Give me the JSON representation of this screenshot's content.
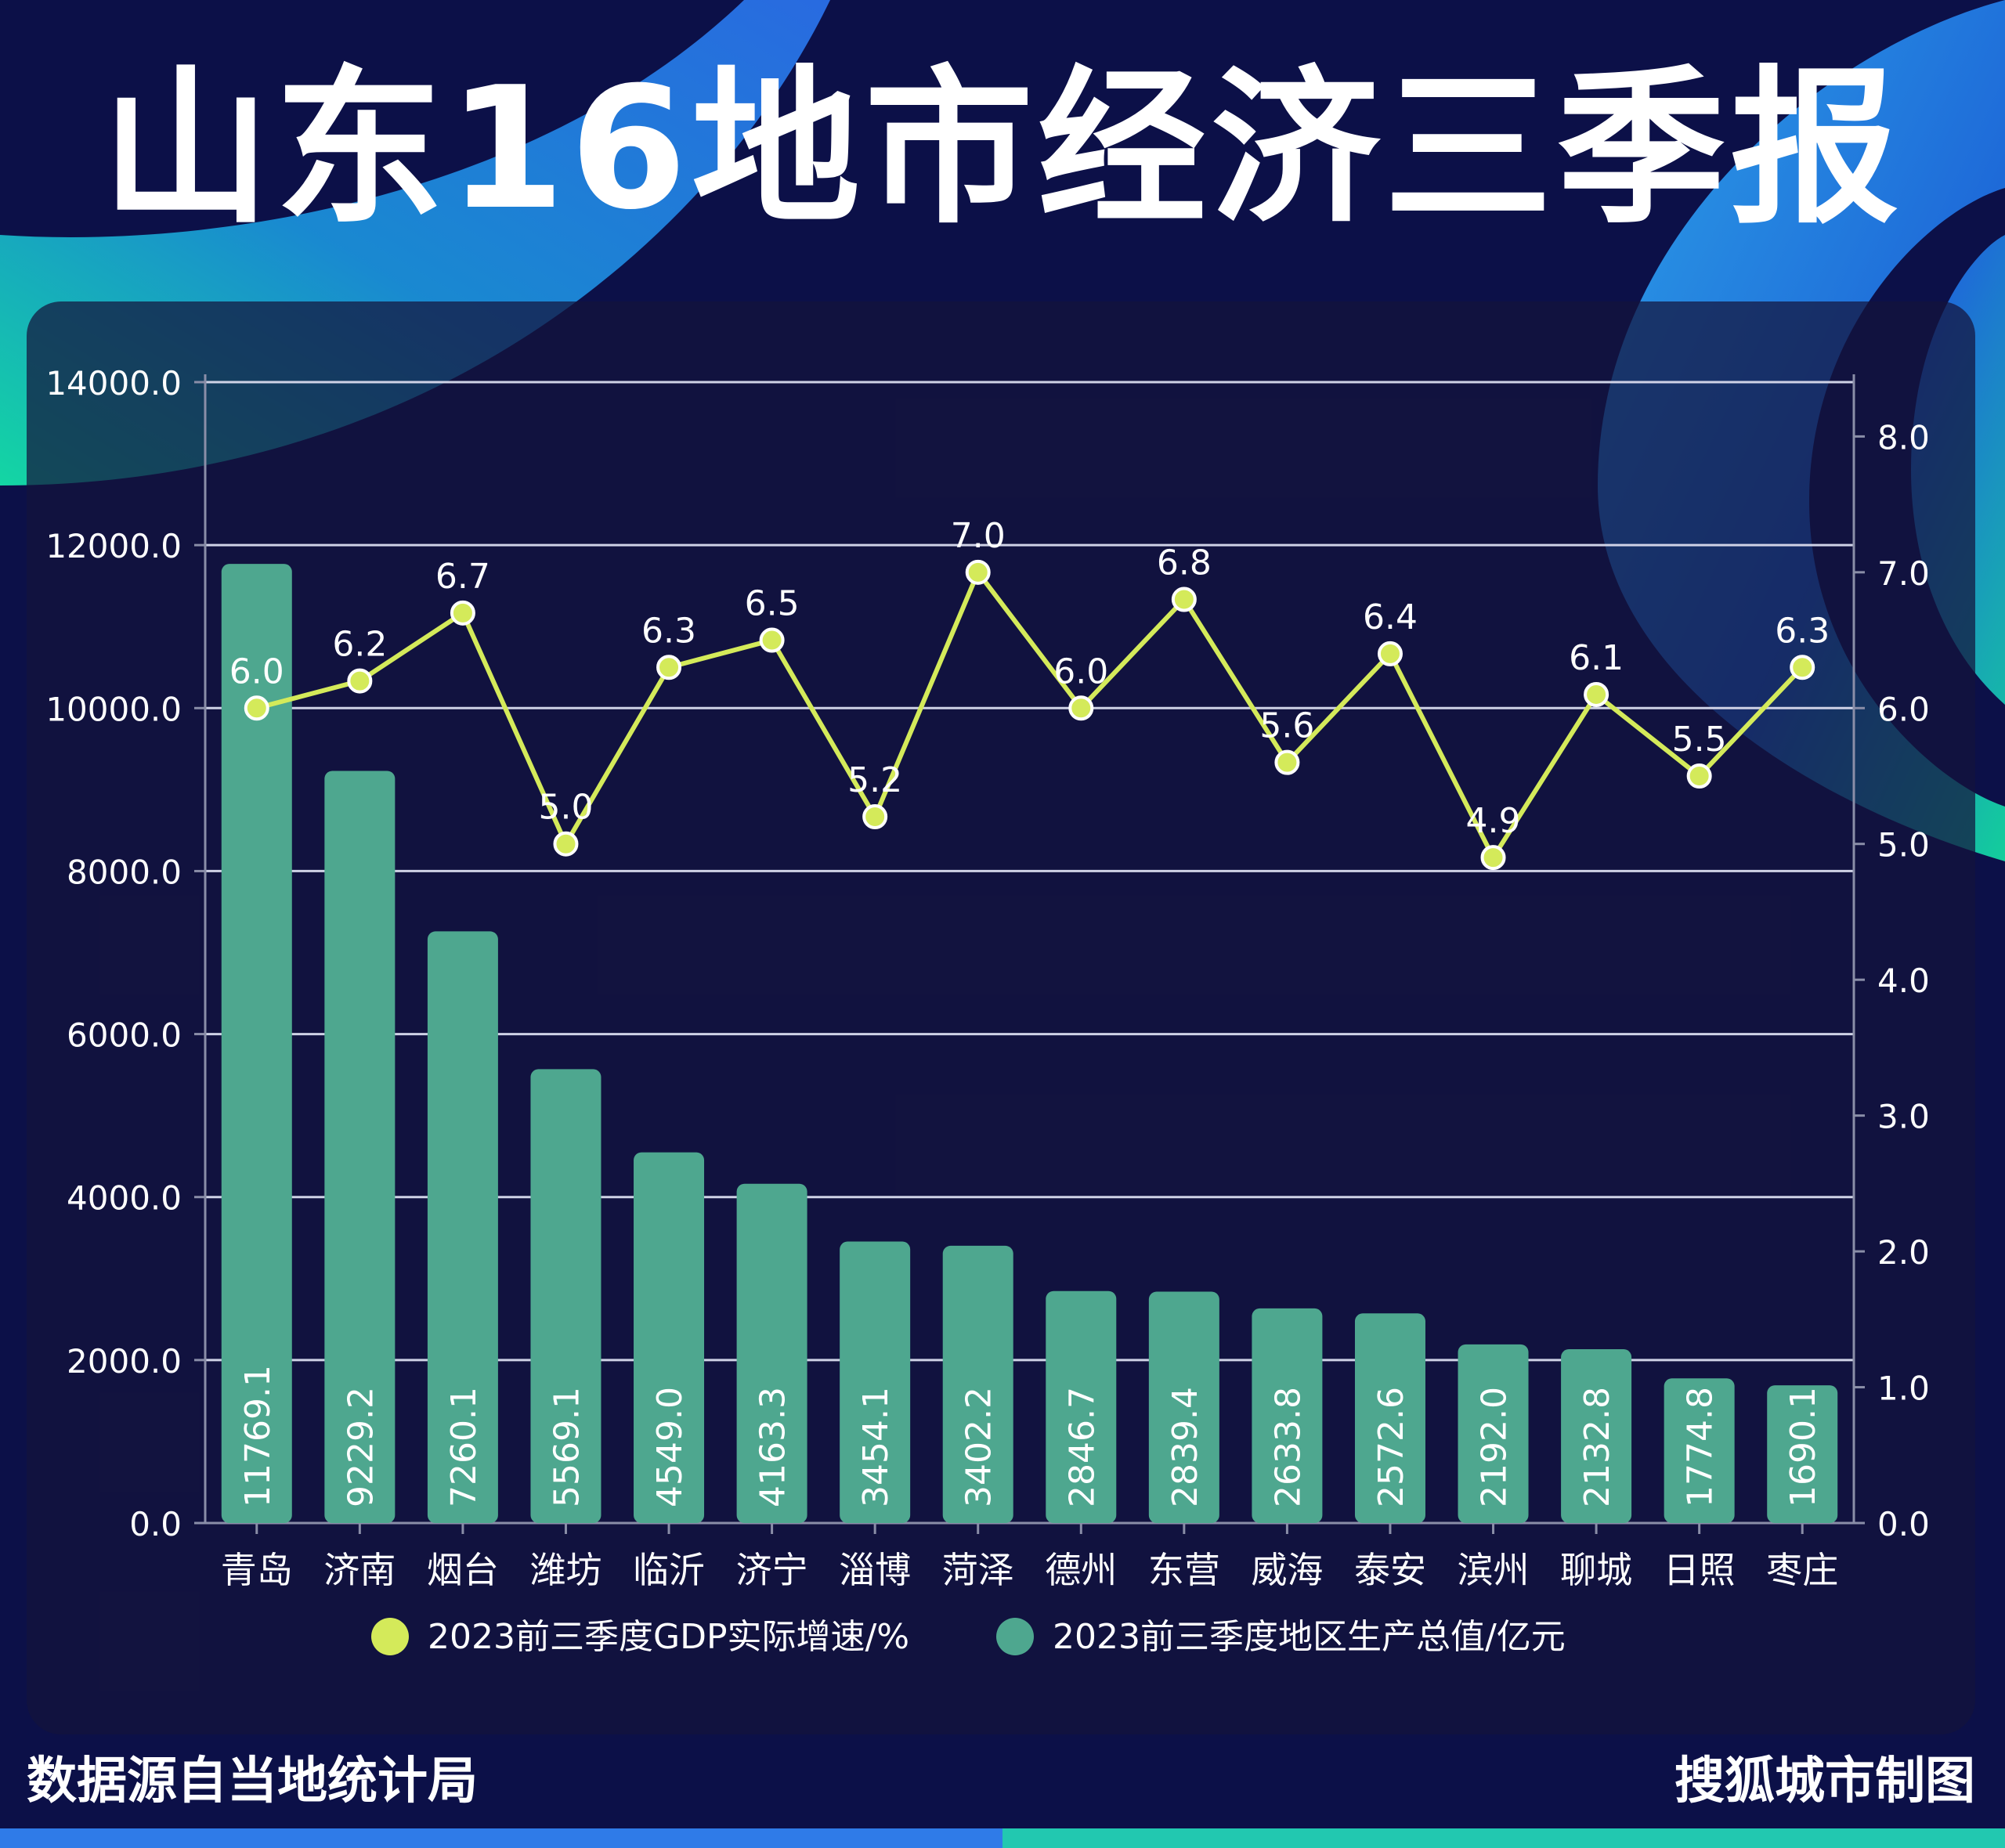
{
  "title": "山东16地市经济三季报",
  "footer": {
    "source": "数据源自当地统计局",
    "credit": "搜狐城市制图"
  },
  "colors": {
    "background": "#0c1048",
    "bar": "#4ea78f",
    "line": "#d4ea5a",
    "accent_blue": "#2f7be8",
    "accent_teal": "#22d4a8"
  },
  "chart_data": {
    "type": "bar",
    "categories": [
      "青岛",
      "济南",
      "烟台",
      "潍坊",
      "临沂",
      "济宁",
      "淄博",
      "菏泽",
      "德州",
      "东营",
      "威海",
      "泰安",
      "滨州",
      "聊城",
      "日照",
      "枣庄"
    ],
    "series": [
      {
        "name": "2023前三季度地区生产总值/亿元",
        "type": "bar",
        "axis": "left",
        "values": [
          11769.1,
          9229.2,
          7260.1,
          5569.1,
          4549.0,
          4163.3,
          3454.1,
          3402.2,
          2846.7,
          2839.4,
          2633.8,
          2572.6,
          2192.0,
          2132.8,
          1774.8,
          1690.1
        ],
        "labels": [
          "11769.1",
          "9229.2",
          "7260.1",
          "5569.1",
          "4549.0",
          "4163.3",
          "3454.1",
          "3402.2",
          "2846.7",
          "2839.4",
          "2633.8",
          "2572.6",
          "2192.0",
          "2132.8",
          "1774.8",
          "1690.1"
        ]
      },
      {
        "name": "2023前三季度GDP实际增速/%",
        "type": "line",
        "axis": "right",
        "values": [
          6.0,
          6.2,
          6.7,
          5.0,
          6.3,
          6.5,
          5.2,
          7.0,
          6.0,
          6.8,
          5.6,
          6.4,
          4.9,
          6.1,
          5.5,
          6.3
        ],
        "labels": [
          "6.0",
          "6.2",
          "6.7",
          "5.0",
          "6.3",
          "6.5",
          "5.2",
          "7.0",
          "6.0",
          "6.8",
          "5.6",
          "6.4",
          "4.9",
          "6.1",
          "5.5",
          "6.3"
        ]
      }
    ],
    "y_left": {
      "ylim": [
        0,
        14000
      ],
      "ticks": [
        0,
        2000,
        4000,
        6000,
        8000,
        10000,
        12000,
        14000
      ],
      "tick_labels": [
        "0.0",
        "2000.0",
        "4000.0",
        "6000.0",
        "8000.0",
        "10000.0",
        "12000.0",
        "14000.0"
      ]
    },
    "y_right": {
      "ylim": [
        0,
        8.4
      ],
      "ticks": [
        0,
        1,
        2,
        3,
        4,
        5,
        6,
        7,
        8
      ],
      "tick_labels": [
        "0.0",
        "1.0",
        "2.0",
        "3.0",
        "4.0",
        "5.0",
        "6.0",
        "7.0",
        "8.0"
      ]
    },
    "grid": true,
    "legend": {
      "placement": "bottom",
      "items": [
        "2023前三季度GDP实际增速/%",
        "2023前三季度地区生产总值/亿元"
      ]
    }
  }
}
